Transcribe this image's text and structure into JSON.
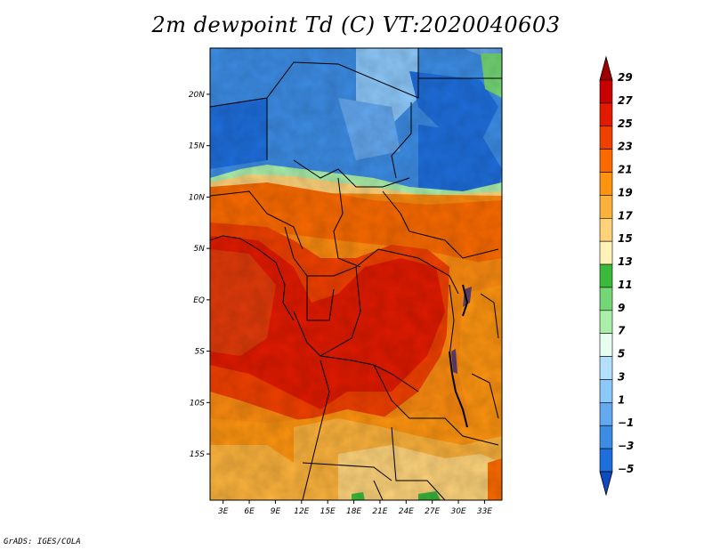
{
  "title": "2m dewpoint Td (C) VT:2020040603",
  "credit": "GrADS: IGES/COLA",
  "map": {
    "lon_labels": [
      "3E",
      "6E",
      "9E",
      "12E",
      "15E",
      "18E",
      "21E",
      "24E",
      "27E",
      "30E",
      "33E"
    ],
    "lat_labels": [
      "20N",
      "15N",
      "10N",
      "5N",
      "EQ",
      "5S",
      "10S",
      "15S"
    ],
    "lon_range": [
      1.5,
      35
    ],
    "lat_range": [
      -19.5,
      24.5
    ]
  },
  "legend": {
    "labels": [
      "29",
      "27",
      "25",
      "23",
      "21",
      "19",
      "17",
      "15",
      "13",
      "11",
      "9",
      "7",
      "5",
      "3",
      "1",
      "−1",
      "−3",
      "−5"
    ],
    "colors": [
      "#a00000",
      "#c80000",
      "#e11a00",
      "#f04000",
      "#fa6a00",
      "#fd9410",
      "#fbb23c",
      "#fdd27a",
      "#fff2b8",
      "#3aba3a",
      "#74d674",
      "#aaeeaa",
      "#e6fff0",
      "#b4e0ff",
      "#8cc8fa",
      "#64a8f0",
      "#3c8ce4",
      "#1e6edc",
      "#0c4cc0"
    ]
  },
  "colors": {
    "dry_blue": "#3c8ce4",
    "moist_red": "#e13a0a",
    "orange": "#fa8a10"
  }
}
